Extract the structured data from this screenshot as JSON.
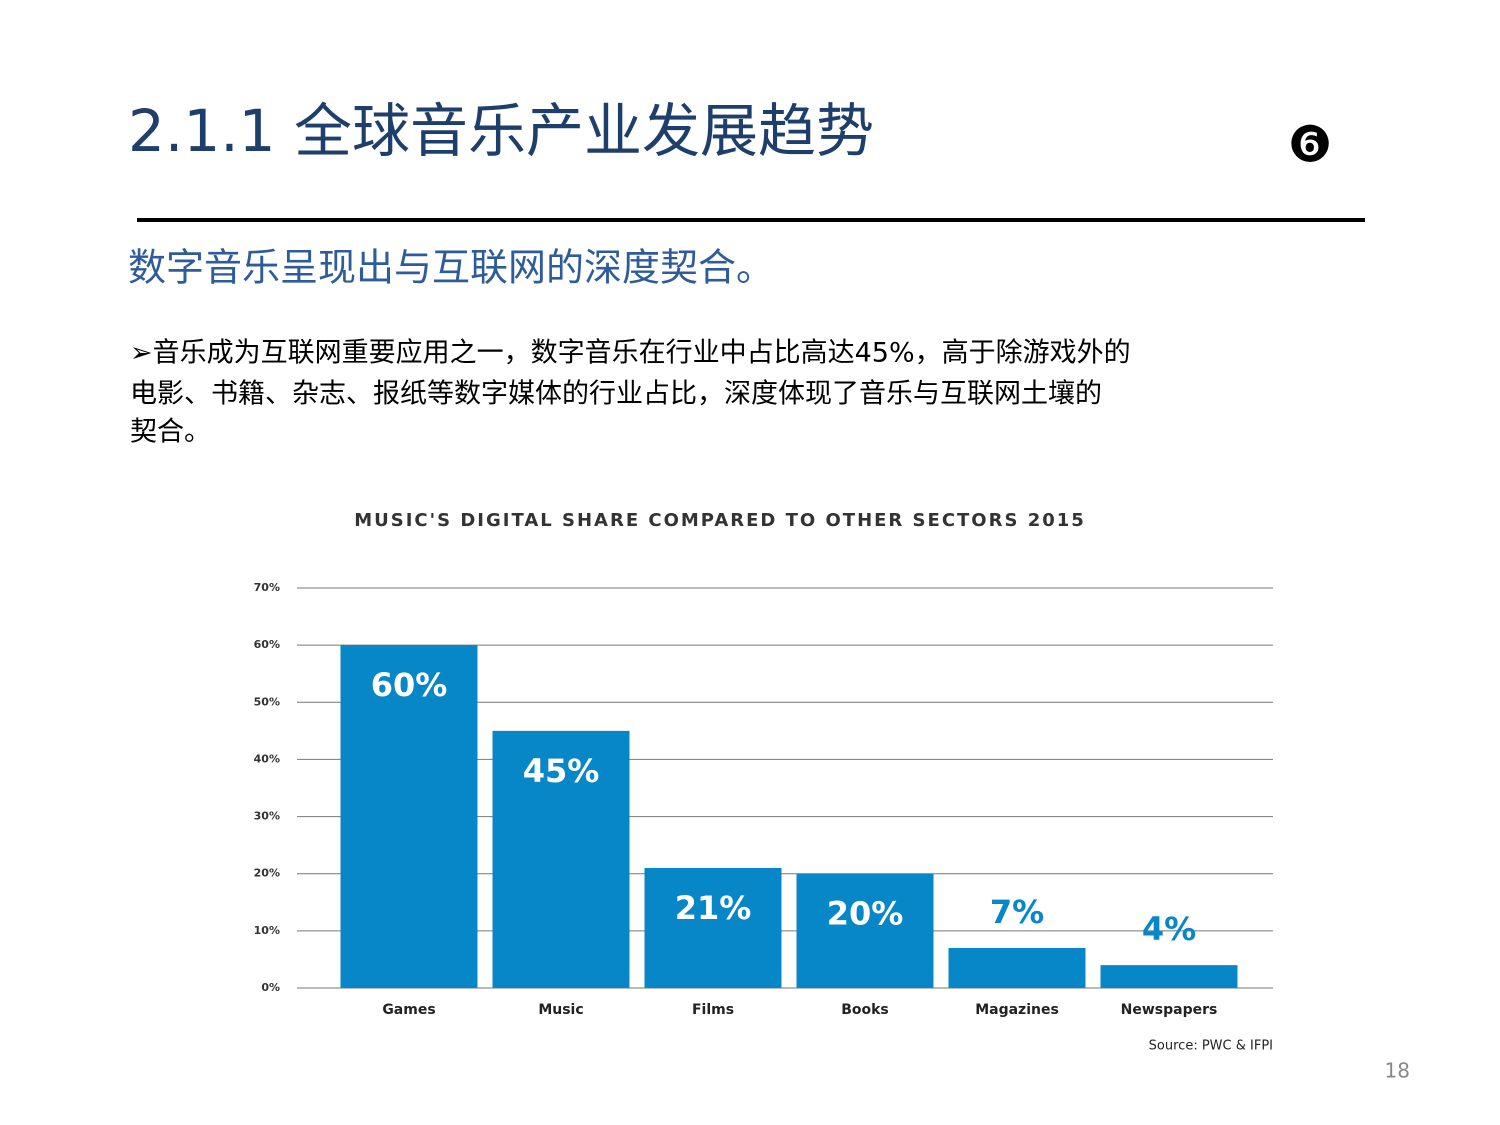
{
  "header": {
    "title": "2.1.1  全球音乐产业发展趋势",
    "badge": "❻"
  },
  "subtitle": "数字音乐呈现出与互联网的深度契合。",
  "body": {
    "lines": [
      "➢音乐成为互联网重要应用之一，数字音乐在行业中占比高达45%，高于除游戏外的",
      "电影、书籍、杂志、报纸等数字媒体的行业占比，深度体现了音乐与互联网土壤的",
      "契合。"
    ]
  },
  "chart_data": {
    "type": "bar",
    "title": "MUSIC'S DIGITAL SHARE COMPARED TO OTHER SECTORS 2015",
    "categories": [
      "Games",
      "Music",
      "Films",
      "Books",
      "Magazines",
      "Newspapers"
    ],
    "values": [
      60,
      45,
      21,
      20,
      7,
      4
    ],
    "value_labels": [
      "60%",
      "45%",
      "21%",
      "20%",
      "7%",
      "4%"
    ],
    "color": "#0787c8",
    "ylim": [
      0,
      70
    ],
    "yticks": [
      {
        "value": 0,
        "label": "0%"
      },
      {
        "value": 10,
        "label": "10%"
      },
      {
        "value": 20,
        "label": "20%"
      },
      {
        "value": 30,
        "label": "30%"
      },
      {
        "value": 40,
        "label": "40%"
      },
      {
        "value": 50,
        "label": "50%"
      },
      {
        "value": 60,
        "label": "60%"
      },
      {
        "value": 70,
        "label": "70%"
      }
    ],
    "grid": true,
    "source": "Source: PWC & IFPI"
  },
  "page_number": "18"
}
